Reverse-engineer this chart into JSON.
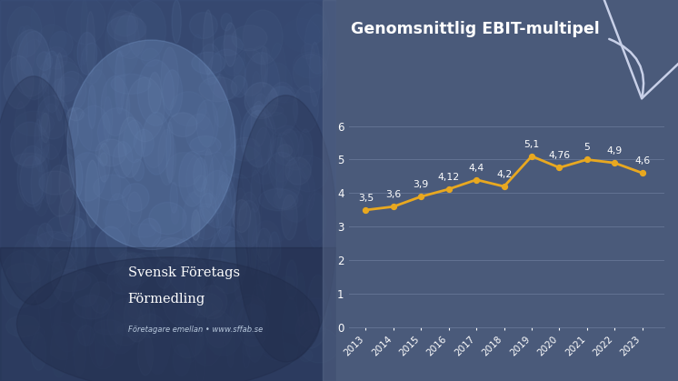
{
  "years": [
    2013,
    2014,
    2015,
    2016,
    2017,
    2018,
    2019,
    2020,
    2021,
    2022,
    2023
  ],
  "values": [
    3.5,
    3.6,
    3.9,
    4.12,
    4.4,
    4.2,
    5.1,
    4.76,
    5.0,
    4.9,
    4.6
  ],
  "labels": [
    "3,5",
    "3,6",
    "3,9",
    "4,12",
    "4,4",
    "4,2",
    "5,1",
    "4,76",
    "5",
    "4,9",
    "4,6"
  ],
  "title": "Genomsnittlig EBIT-multipel",
  "line_color": "#E8A820",
  "bg_color": "#4A5A7A",
  "chart_bg": "#4A5A7A",
  "left_bg": "#4A5A7A",
  "grid_color": "#6A7A9A",
  "text_color": "#FFFFFF",
  "yticks": [
    0,
    1,
    2,
    3,
    4,
    5,
    6
  ],
  "ylim": [
    0,
    6.8
  ],
  "figwidth": 7.46,
  "figheight": 4.19,
  "company_name_line1": "Svensk Företags",
  "company_name_line2": "Förmedling",
  "tagline": "Företagare emellan • www.sffab.se",
  "arrow_color": "#C8D0E8",
  "label_offsets": [
    0.22,
    0.22,
    0.22,
    0.22,
    0.22,
    0.22,
    0.22,
    0.22,
    0.22,
    0.22,
    0.22
  ]
}
